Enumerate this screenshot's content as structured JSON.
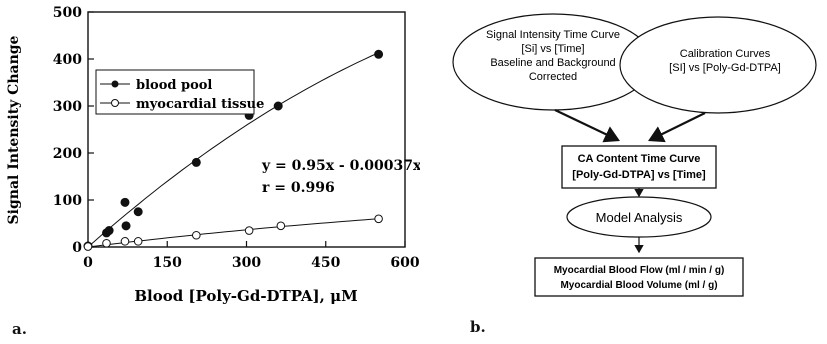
{
  "panel_a": {
    "label": "a.",
    "equation": "y = 0.95x - 0.00037x²",
    "r_text": "r = 0.996"
  },
  "panel_b": {
    "label": "b.",
    "ellipse_left": [
      "Signal Intensity Time Curve",
      "[Si] vs [Time]",
      "Baseline and Background",
      "Corrected"
    ],
    "ellipse_right": [
      "Calibration Curves",
      "[SI] vs [Poly-Gd-DTPA]"
    ],
    "box_content": [
      "CA Content Time Curve",
      "[Poly-Gd-DTPA]  vs [Time]"
    ],
    "ellipse_model": "Model Analysis",
    "box_output": [
      "Myocardial Blood Flow (ml / min / g)",
      "Myocardial Blood Volume (ml / g)"
    ]
  },
  "chart_data": {
    "type": "scatter",
    "xlabel": "Blood [Poly-Gd-DTPA], μM",
    "ylabel": "Signal Intensity Change",
    "xlim": [
      0,
      600
    ],
    "ylim": [
      0,
      500
    ],
    "xticks": [
      0,
      150,
      300,
      450,
      600
    ],
    "yticks": [
      0,
      100,
      200,
      300,
      400,
      500
    ],
    "grid": false,
    "legend_position": "top-left",
    "series": [
      {
        "name": "blood pool",
        "marker": "filled-circle",
        "points": [
          [
            0,
            2
          ],
          [
            35,
            30
          ],
          [
            40,
            35
          ],
          [
            70,
            95
          ],
          [
            72,
            45
          ],
          [
            95,
            75
          ],
          [
            205,
            180
          ],
          [
            305,
            280
          ],
          [
            360,
            300
          ],
          [
            550,
            410
          ]
        ],
        "fit": "curve"
      },
      {
        "name": "myocardial tissue",
        "marker": "open-circle",
        "points": [
          [
            0,
            1
          ],
          [
            35,
            8
          ],
          [
            70,
            12
          ],
          [
            95,
            12
          ],
          [
            205,
            25
          ],
          [
            305,
            35
          ],
          [
            365,
            45
          ],
          [
            550,
            60
          ]
        ],
        "fit": "curve"
      }
    ]
  }
}
